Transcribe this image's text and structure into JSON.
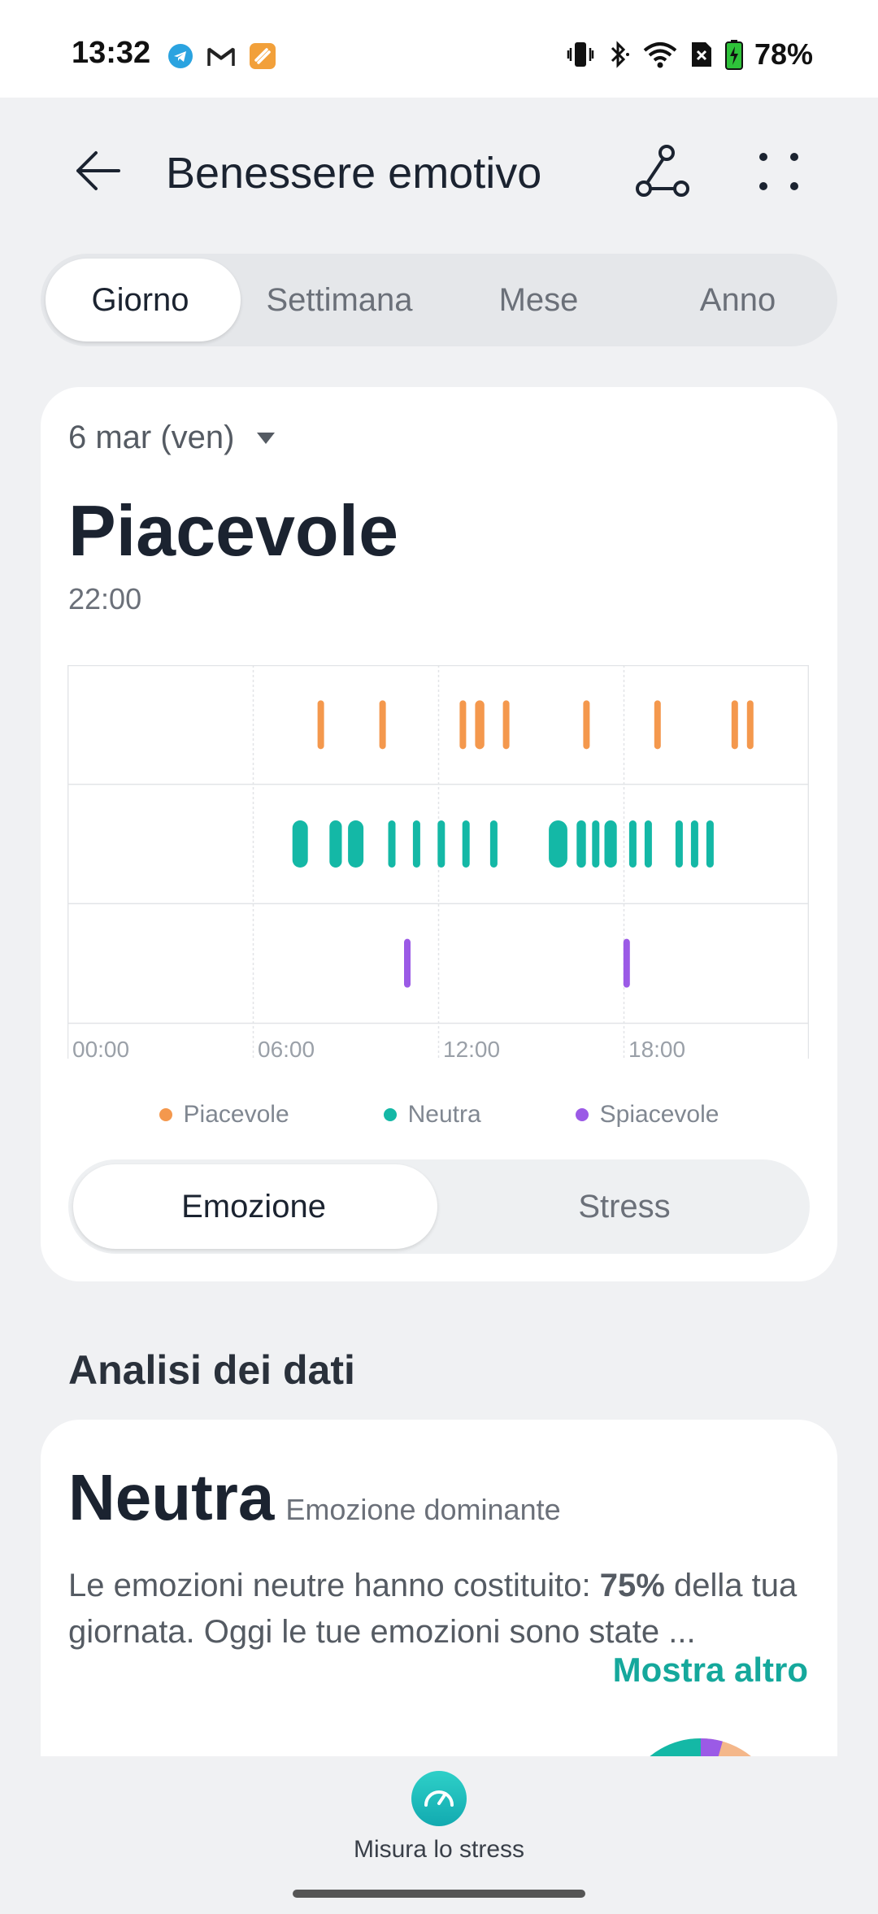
{
  "status_bar": {
    "time": "13:32",
    "battery": "78%"
  },
  "header": {
    "title": "Benessere emotivo"
  },
  "period_tabs": [
    "Giorno",
    "Settimana",
    "Mese",
    "Anno"
  ],
  "selected_period": "Giorno",
  "summary": {
    "date": "6 mar (ven)",
    "emotion": "Piacevole",
    "time": "22:00"
  },
  "chart_data": {
    "type": "timeline",
    "x_ticks": [
      "00:00",
      "06:00",
      "12:00",
      "18:00"
    ],
    "x_range_hours": [
      0,
      24
    ],
    "rows": [
      {
        "name": "Piacevole",
        "color": "#f4984d",
        "events": [
          {
            "start": 8.2,
            "end": 8.2
          },
          {
            "start": 10.2,
            "end": 10.2
          },
          {
            "start": 12.8,
            "end": 12.8
          },
          {
            "start": 13.3,
            "end": 13.6
          },
          {
            "start": 14.2,
            "end": 14.2
          },
          {
            "start": 16.8,
            "end": 16.8
          },
          {
            "start": 19.1,
            "end": 19.1
          },
          {
            "start": 21.6,
            "end": 21.6
          },
          {
            "start": 22.1,
            "end": 22.1
          }
        ]
      },
      {
        "name": "Neutra",
        "color": "#14b8a6",
        "events": [
          {
            "start": 7.4,
            "end": 7.9
          },
          {
            "start": 8.6,
            "end": 9.0
          },
          {
            "start": 9.2,
            "end": 9.7
          },
          {
            "start": 10.5,
            "end": 10.5
          },
          {
            "start": 11.3,
            "end": 11.3
          },
          {
            "start": 12.1,
            "end": 12.3
          },
          {
            "start": 12.9,
            "end": 12.9
          },
          {
            "start": 13.8,
            "end": 14.0
          },
          {
            "start": 15.7,
            "end": 16.3
          },
          {
            "start": 16.6,
            "end": 16.9
          },
          {
            "start": 17.1,
            "end": 17.3
          },
          {
            "start": 17.5,
            "end": 17.9
          },
          {
            "start": 18.3,
            "end": 18.4
          },
          {
            "start": 18.8,
            "end": 18.9
          },
          {
            "start": 19.8,
            "end": 19.9
          },
          {
            "start": 20.3,
            "end": 20.4
          },
          {
            "start": 20.8,
            "end": 20.9
          }
        ]
      },
      {
        "name": "Spiacevole",
        "color": "#9b5ae6",
        "events": [
          {
            "start": 11.0,
            "end": 11.0
          },
          {
            "start": 18.1,
            "end": 18.1
          }
        ]
      }
    ]
  },
  "legend": [
    {
      "label": "Piacevole",
      "color": "#f4984d"
    },
    {
      "label": "Neutra",
      "color": "#14b8a6"
    },
    {
      "label": "Spiacevole",
      "color": "#9b5ae6"
    }
  ],
  "chart_toggle": [
    "Emozione",
    "Stress"
  ],
  "selected_toggle": "Emozione",
  "analysis": {
    "section_title": "Analisi dei dati",
    "dominant_value": "Neutra",
    "dominant_label": "Emozione dominante",
    "desc_prefix": "Le emozioni neutre hanno costituito:",
    "desc_percent": "75%",
    "desc_suffix": "della tua giornata. Oggi le tue emozioni sono state ...",
    "show_more": "Mostra altro"
  },
  "bottom": {
    "measure_label": "Misura lo stress"
  },
  "colors": {
    "accent": "#15a89c",
    "pleasant": "#f4984d",
    "neutral": "#14b8a6",
    "unpleasant": "#9b5ae6"
  }
}
